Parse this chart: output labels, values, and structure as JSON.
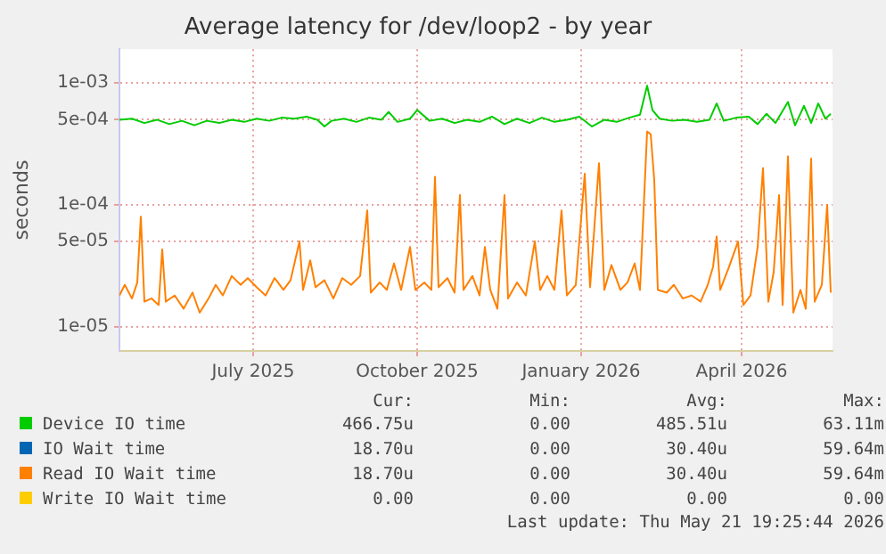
{
  "chart_data": {
    "type": "line",
    "title": "Average latency for /dev/loop2 - by year",
    "ylabel": "seconds",
    "log": true,
    "grid": true,
    "legend": "bottom",
    "marker": "none",
    "line_style": "solid",
    "xlim": [
      "2025-04-17",
      "2026-05-22"
    ],
    "xticks": [
      {
        "value": "2025-07-01",
        "label": "July 2025"
      },
      {
        "value": "2025-10-01",
        "label": "October 2025"
      },
      {
        "value": "2026-01-01",
        "label": "January 2026"
      },
      {
        "value": "2026-04-01",
        "label": "April 2026"
      }
    ],
    "ylim": [
      6.3e-06,
      0.0019
    ],
    "yticks": [
      {
        "value": 1e-05,
        "label": "1e-05"
      },
      {
        "value": 5e-05,
        "label": "5e-05"
      },
      {
        "value": 0.0001,
        "label": "1e-04"
      },
      {
        "value": 0.0005,
        "label": "5e-04"
      },
      {
        "value": 0.001,
        "label": "1e-03"
      }
    ],
    "series": [
      {
        "name": "Device IO time",
        "color": "#00cc00",
        "x": [
          "2025-04-17",
          "2025-04-24",
          "2025-05-01",
          "2025-05-08",
          "2025-05-15",
          "2025-05-22",
          "2025-05-29",
          "2025-06-05",
          "2025-06-12",
          "2025-06-19",
          "2025-06-26",
          "2025-07-03",
          "2025-07-10",
          "2025-07-17",
          "2025-07-24",
          "2025-07-31",
          "2025-08-06",
          "2025-08-10",
          "2025-08-14",
          "2025-08-21",
          "2025-08-28",
          "2025-09-04",
          "2025-09-11",
          "2025-09-15",
          "2025-09-20",
          "2025-09-27",
          "2025-10-01",
          "2025-10-08",
          "2025-10-15",
          "2025-10-22",
          "2025-10-29",
          "2025-11-05",
          "2025-11-12",
          "2025-11-19",
          "2025-11-26",
          "2025-12-03",
          "2025-12-10",
          "2025-12-17",
          "2025-12-24",
          "2025-12-31",
          "2026-01-07",
          "2026-01-14",
          "2026-01-21",
          "2026-01-28",
          "2026-02-03",
          "2026-02-07",
          "2026-02-10",
          "2026-02-14",
          "2026-02-21",
          "2026-02-28",
          "2026-03-07",
          "2026-03-14",
          "2026-03-18",
          "2026-03-22",
          "2026-03-29",
          "2026-04-05",
          "2026-04-10",
          "2026-04-15",
          "2026-04-20",
          "2026-04-27",
          "2026-05-01",
          "2026-05-06",
          "2026-05-10",
          "2026-05-14",
          "2026-05-18",
          "2026-05-21"
        ],
        "values": [
          0.0005,
          0.00051,
          0.00047,
          0.0005,
          0.00046,
          0.00049,
          0.00045,
          0.00049,
          0.00047,
          0.0005,
          0.00048,
          0.00051,
          0.00049,
          0.00052,
          0.00051,
          0.00053,
          0.0005,
          0.00044,
          0.00049,
          0.00051,
          0.00048,
          0.00052,
          0.0005,
          0.00058,
          0.00048,
          0.00051,
          0.0006,
          0.00049,
          0.00051,
          0.00047,
          0.0005,
          0.00048,
          0.00053,
          0.00046,
          0.00051,
          0.00047,
          0.00052,
          0.00048,
          0.0005,
          0.00053,
          0.00044,
          0.0005,
          0.00048,
          0.00052,
          0.00055,
          0.00095,
          0.0006,
          0.00051,
          0.00049,
          0.0005,
          0.00048,
          0.0005,
          0.00068,
          0.00049,
          0.00052,
          0.00053,
          0.00046,
          0.00056,
          0.00047,
          0.0007,
          0.00045,
          0.00065,
          0.00047,
          0.00068,
          0.00051,
          0.00056
        ]
      },
      {
        "name": "IO Wait time",
        "color": "#0066b3"
      },
      {
        "name": "Read IO Wait time",
        "color": "#ff8000",
        "x": [
          "2025-04-17",
          "2025-04-20",
          "2025-04-24",
          "2025-04-27",
          "2025-04-29",
          "2025-05-01",
          "2025-05-05",
          "2025-05-09",
          "2025-05-11",
          "2025-05-13",
          "2025-05-18",
          "2025-05-23",
          "2025-05-28",
          "2025-06-01",
          "2025-06-06",
          "2025-06-10",
          "2025-06-14",
          "2025-06-19",
          "2025-06-24",
          "2025-06-28",
          "2025-07-03",
          "2025-07-08",
          "2025-07-13",
          "2025-07-18",
          "2025-07-22",
          "2025-07-27",
          "2025-07-29",
          "2025-08-02",
          "2025-08-05",
          "2025-08-10",
          "2025-08-15",
          "2025-08-20",
          "2025-08-25",
          "2025-08-30",
          "2025-09-03",
          "2025-09-05",
          "2025-09-10",
          "2025-09-14",
          "2025-09-18",
          "2025-09-22",
          "2025-09-27",
          "2025-09-30",
          "2025-10-05",
          "2025-10-09",
          "2025-10-11",
          "2025-10-13",
          "2025-10-18",
          "2025-10-22",
          "2025-10-25",
          "2025-10-27",
          "2025-11-01",
          "2025-11-05",
          "2025-11-08",
          "2025-11-11",
          "2025-11-15",
          "2025-11-19",
          "2025-11-21",
          "2025-11-26",
          "2025-12-01",
          "2025-12-06",
          "2025-12-09",
          "2025-12-13",
          "2025-12-17",
          "2025-12-21",
          "2025-12-24",
          "2025-12-29",
          "2026-01-03",
          "2026-01-06",
          "2026-01-11",
          "2026-01-14",
          "2026-01-18",
          "2026-01-23",
          "2026-01-27",
          "2026-01-31",
          "2026-02-03",
          "2026-02-07",
          "2026-02-09",
          "2026-02-11",
          "2026-02-13",
          "2026-02-18",
          "2026-02-22",
          "2026-02-27",
          "2026-03-04",
          "2026-03-09",
          "2026-03-13",
          "2026-03-16",
          "2026-03-18",
          "2026-03-20",
          "2026-03-25",
          "2026-03-30",
          "2026-04-02",
          "2026-04-06",
          "2026-04-10",
          "2026-04-13",
          "2026-04-16",
          "2026-04-19",
          "2026-04-22",
          "2026-04-24",
          "2026-04-27",
          "2026-04-30",
          "2026-05-04",
          "2026-05-07",
          "2026-05-10",
          "2026-05-12",
          "2026-05-16",
          "2026-05-19",
          "2026-05-21"
        ],
        "values": [
          1.8e-05,
          2.2e-05,
          1.7e-05,
          2.3e-05,
          8e-05,
          1.6e-05,
          1.7e-05,
          1.5e-05,
          4.3e-05,
          1.6e-05,
          1.8e-05,
          1.4e-05,
          1.9e-05,
          1.3e-05,
          1.7e-05,
          2.2e-05,
          1.8e-05,
          2.6e-05,
          2.2e-05,
          2.5e-05,
          2.1e-05,
          1.8e-05,
          2.5e-05,
          2e-05,
          2.4e-05,
          5e-05,
          2e-05,
          3.5e-05,
          2.1e-05,
          2.4e-05,
          1.7e-05,
          2.5e-05,
          2.2e-05,
          2.6e-05,
          9e-05,
          1.9e-05,
          2.3e-05,
          2e-05,
          3.3e-05,
          2e-05,
          4.5e-05,
          2e-05,
          2.3e-05,
          2e-05,
          0.00017,
          2.1e-05,
          2.5e-05,
          1.9e-05,
          0.00012,
          2e-05,
          2.6e-05,
          1.8e-05,
          4.5e-05,
          2e-05,
          1.4e-05,
          0.00012,
          1.7e-05,
          2.3e-05,
          1.8e-05,
          5e-05,
          2e-05,
          2.6e-05,
          2e-05,
          9e-05,
          1.8e-05,
          2.2e-05,
          0.00018,
          2.1e-05,
          0.00022,
          2e-05,
          3.2e-05,
          2e-05,
          2.3e-05,
          3.3e-05,
          2e-05,
          0.0004,
          0.00038,
          0.00016,
          2e-05,
          1.9e-05,
          2.2e-05,
          1.7e-05,
          1.8e-05,
          1.6e-05,
          2.2e-05,
          3.1e-05,
          5.5e-05,
          2e-05,
          3.1e-05,
          5e-05,
          1.5e-05,
          1.8e-05,
          4.5e-05,
          0.0002,
          1.6e-05,
          2.8e-05,
          0.00012,
          1.5e-05,
          0.00025,
          1.3e-05,
          2e-05,
          1.4e-05,
          0.00024,
          1.6e-05,
          2.2e-05,
          0.0001,
          1.9e-05
        ]
      },
      {
        "name": "Write IO Wait time",
        "color": "#ffcc00"
      }
    ],
    "annotations": [
      "Cur:",
      "Min:",
      "Avg:",
      "Max:",
      "466.75u",
      "0.00",
      "485.51u",
      "63.11m",
      "18.70u",
      "0.00",
      "30.40u",
      "59.64m",
      "18.70u",
      "0.00",
      "30.40u",
      "59.64m",
      "0.00",
      "0.00",
      "0.00",
      "0.00",
      "Last update: Thu May 21 19:25:44 2026"
    ]
  }
}
